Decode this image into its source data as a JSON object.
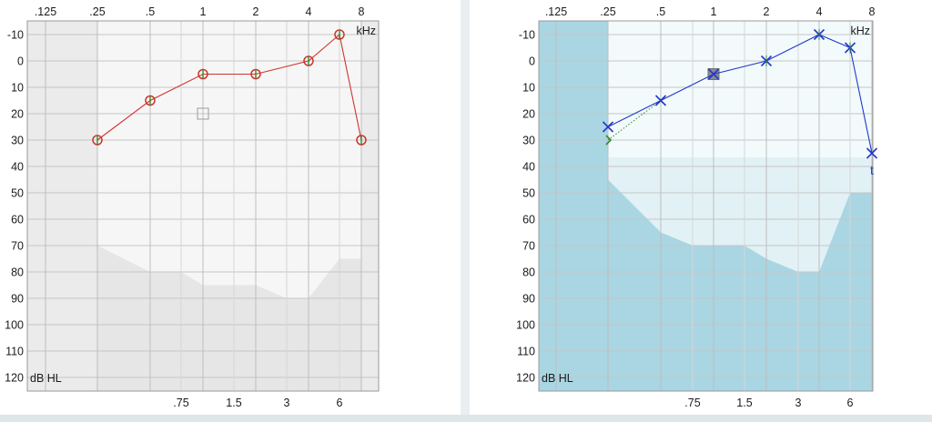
{
  "chart_data": [
    {
      "type": "audiogram",
      "ear": "right",
      "top_freq_labels": [
        ".125",
        ".25",
        ".5",
        "1",
        "2",
        "4",
        "8"
      ],
      "bottom_freq_labels": [
        ".75",
        "1.5",
        "3",
        "6"
      ],
      "y_tick_labels": [
        "-10",
        "0",
        "10",
        "20",
        "30",
        "40",
        "50",
        "60",
        "70",
        "80",
        "90",
        "100",
        "110",
        "120"
      ],
      "x_unit_label": "kHz",
      "y_unit_label": "dB HL",
      "ylim": [
        -15,
        125
      ],
      "background_style": "grey",
      "no_response_shading_db": [
        {
          "freq_khz": 0.25,
          "db": 70
        },
        {
          "freq_khz": 0.5,
          "db": 80
        },
        {
          "freq_khz": 0.75,
          "db": 80
        },
        {
          "freq_khz": 1,
          "db": 85
        },
        {
          "freq_khz": 2,
          "db": 85
        },
        {
          "freq_khz": 3,
          "db": 90
        },
        {
          "freq_khz": 4,
          "db": 90
        },
        {
          "freq_khz": 6,
          "db": 75
        },
        {
          "freq_khz": 8,
          "db": 75
        }
      ],
      "series": [
        {
          "symbol": "circle",
          "color": "#d0342c",
          "points": [
            {
              "freq_khz": 0.25,
              "db": 30
            },
            {
              "freq_khz": 0.5,
              "db": 15
            },
            {
              "freq_khz": 1,
              "db": 5
            },
            {
              "freq_khz": 2,
              "db": 5
            },
            {
              "freq_khz": 4,
              "db": 0
            },
            {
              "freq_khz": 6,
              "db": -10
            },
            {
              "freq_khz": 8,
              "db": 30
            }
          ]
        }
      ],
      "extra_markers": [
        {
          "symbol": "square-outline",
          "freq_khz": 1,
          "db": 20,
          "color": "#a9a9a9"
        }
      ]
    },
    {
      "type": "audiogram",
      "ear": "left",
      "top_freq_labels": [
        ".125",
        ".25",
        ".5",
        "1",
        "2",
        "4",
        "8"
      ],
      "bottom_freq_labels": [
        ".75",
        "1.5",
        "3",
        "6"
      ],
      "y_tick_labels": [
        "-10",
        "0",
        "10",
        "20",
        "30",
        "40",
        "50",
        "60",
        "70",
        "80",
        "90",
        "100",
        "110",
        "120"
      ],
      "x_unit_label": "kHz",
      "y_unit_label": "dB HL",
      "ylim": [
        -15,
        125
      ],
      "background_style": "blue",
      "blue_region_db": [
        {
          "freq_khz": 0.25,
          "db": 45
        },
        {
          "freq_khz": 0.5,
          "db": 65
        },
        {
          "freq_khz": 0.75,
          "db": 70
        },
        {
          "freq_khz": 1.5,
          "db": 70
        },
        {
          "freq_khz": 2,
          "db": 75
        },
        {
          "freq_khz": 3,
          "db": 80
        },
        {
          "freq_khz": 4,
          "db": 80
        },
        {
          "freq_khz": 6,
          "db": 50
        },
        {
          "freq_khz": 8,
          "db": 50
        }
      ],
      "series": [
        {
          "symbol": "x",
          "color": "#2239c8",
          "points": [
            {
              "freq_khz": 0.25,
              "db": 25
            },
            {
              "freq_khz": 0.5,
              "db": 15
            },
            {
              "freq_khz": 1,
              "db": 5
            },
            {
              "freq_khz": 2,
              "db": 0
            },
            {
              "freq_khz": 4,
              "db": -10
            },
            {
              "freq_khz": 6,
              "db": -5
            },
            {
              "freq_khz": 8,
              "db": 35
            }
          ]
        }
      ],
      "extra_markers": [
        {
          "symbol": "bone-bracket",
          "freq_khz": 0.25,
          "db": 30,
          "color": "#2e8b2e",
          "connect_to_db": 25
        },
        {
          "symbol": "masked-square",
          "freq_khz": 1,
          "db": 5,
          "color": "#8a8a96"
        },
        {
          "symbol": "letter-t",
          "text": "t",
          "freq_khz": 8,
          "db": 39,
          "color": "#2239c8"
        }
      ]
    }
  ]
}
